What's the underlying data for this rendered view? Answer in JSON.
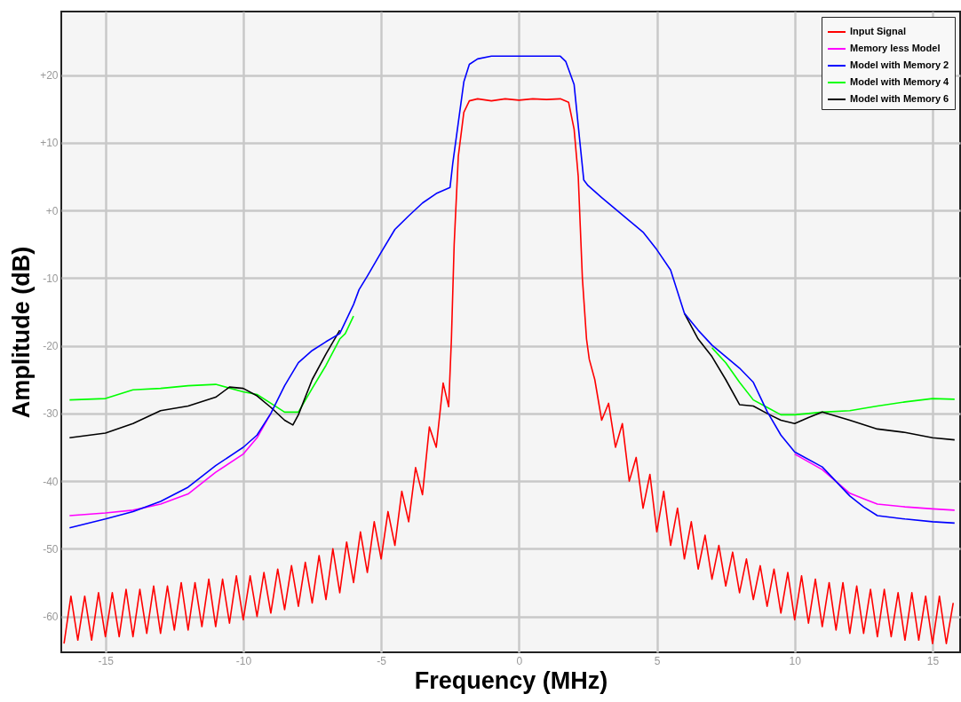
{
  "chart_data": {
    "type": "line",
    "xlabel": "Frequency (MHz)",
    "ylabel": "Amplitude (dB)",
    "xlim": [
      -16.6,
      16.0
    ],
    "ylim": [
      -65.3,
      29.4
    ],
    "xticks": [
      -15,
      -10,
      -5,
      0,
      5,
      10,
      15
    ],
    "yticks": [
      {
        "value": 20,
        "label": "+20"
      },
      {
        "value": 10,
        "label": "+10"
      },
      {
        "value": 0,
        "label": "+0"
      },
      -10,
      -20,
      -30,
      -40,
      -50,
      -60
    ],
    "grid": true,
    "legend": "top right",
    "line_style": "solid",
    "marker": "none",
    "series": [
      {
        "name": "Input Signal",
        "color": "#ff0000",
        "x": [
          -16.5,
          -16.25,
          -16,
          -15.75,
          -15.5,
          -15.25,
          -15,
          -14.75,
          -14.5,
          -14.25,
          -14,
          -13.75,
          -13.5,
          -13.25,
          -13,
          -12.75,
          -12.5,
          -12.25,
          -12,
          -11.75,
          -11.5,
          -11.25,
          -11,
          -10.75,
          -10.5,
          -10.25,
          -10,
          -9.75,
          -9.5,
          -9.25,
          -9,
          -8.75,
          -8.5,
          -8.25,
          -8,
          -7.75,
          -7.5,
          -7.25,
          -7,
          -6.75,
          -6.5,
          -6.25,
          -6,
          -5.75,
          -5.5,
          -5.25,
          -5,
          -4.75,
          -4.5,
          -4.25,
          -4,
          -3.75,
          -3.5,
          -3.25,
          -3,
          -2.75,
          -2.55,
          -2.45,
          -2.35,
          -2.2,
          -2.0,
          -1.8,
          -1.5,
          -1,
          -0.5,
          0,
          0.5,
          1,
          1.5,
          1.8,
          2.0,
          2.15,
          2.3,
          2.45,
          2.55,
          2.75,
          3,
          3.25,
          3.5,
          3.75,
          4,
          4.25,
          4.5,
          4.75,
          5,
          5.25,
          5.5,
          5.75,
          6,
          6.25,
          6.5,
          6.75,
          7,
          7.25,
          7.5,
          7.75,
          8,
          8.25,
          8.5,
          8.75,
          9,
          9.25,
          9.5,
          9.75,
          10,
          10.25,
          10.5,
          10.75,
          11,
          11.25,
          11.5,
          11.75,
          12,
          12.25,
          12.5,
          12.75,
          13,
          13.25,
          13.5,
          13.75,
          14,
          14.25,
          14.5,
          14.75,
          15,
          15.25,
          15.5,
          15.75
        ],
        "values": [
          -64,
          -57,
          -63.5,
          -57,
          -63.5,
          -56.5,
          -63,
          -56.5,
          -63,
          -56,
          -63,
          -56,
          -62.5,
          -55.5,
          -62.5,
          -55.5,
          -62,
          -55,
          -62,
          -55,
          -61.5,
          -54.5,
          -61.5,
          -54.5,
          -61,
          -54,
          -60.5,
          -54,
          -60,
          -53.5,
          -59.5,
          -53,
          -59,
          -52.5,
          -58.5,
          -52,
          -58,
          -51,
          -57.5,
          -50,
          -56.5,
          -49,
          -55,
          -47.5,
          -53.5,
          -46,
          -51.5,
          -44.5,
          -49.5,
          -41.5,
          -46,
          -38,
          -42,
          -32,
          -35,
          -25.5,
          -29,
          -19,
          -5,
          8,
          14.5,
          16.2,
          16.5,
          16.2,
          16.5,
          16.3,
          16.5,
          16.4,
          16.5,
          16,
          12,
          5,
          -10,
          -19,
          -22,
          -25,
          -31,
          -28.5,
          -35,
          -31.5,
          -40,
          -36.5,
          -44,
          -39,
          -47.5,
          -41.5,
          -49.5,
          -44,
          -51.5,
          -46,
          -53,
          -48,
          -54.5,
          -49.5,
          -55.5,
          -50.5,
          -56.5,
          -51.5,
          -57.5,
          -52.5,
          -58.5,
          -53,
          -59.5,
          -53.5,
          -60.5,
          -54,
          -61,
          -54.5,
          -61.5,
          -55,
          -62,
          -55,
          -62.5,
          -55.5,
          -62.5,
          -56,
          -63,
          -56,
          -63,
          -56.5,
          -63.5,
          -56.5,
          -63.5,
          -57,
          -64,
          -57,
          -64,
          -58
        ]
      },
      {
        "name": "Memory less Model",
        "color": "#ff00ff",
        "x": [
          -16.3,
          -15,
          -14,
          -13,
          -12,
          -11,
          -10,
          -9.5,
          -9,
          -8.5,
          -8,
          -7.5,
          -7,
          -6.5,
          -6,
          -5.8,
          -5.5,
          -5,
          -4.5,
          -4,
          -3.5,
          -3,
          -2.5,
          -2.4,
          -2.2,
          -2.0,
          -1.8,
          -1.5,
          -1,
          0,
          1,
          1.5,
          1.7,
          2,
          2.2,
          2.35,
          2.5,
          3,
          3.5,
          4,
          4.5,
          5,
          5.5,
          6,
          6.5,
          7,
          7.5,
          8,
          8.5,
          9,
          9.5,
          10,
          11,
          12,
          12.5,
          13,
          14,
          15,
          15.8
        ],
        "values": [
          -45.1,
          -44.7,
          -44.3,
          -43.4,
          -41.9,
          -38.7,
          -36,
          -33.6,
          -30,
          null,
          null,
          null,
          null,
          null,
          null,
          null,
          null,
          null,
          null,
          null,
          null,
          null,
          null,
          null,
          null,
          null,
          null,
          null,
          null,
          null,
          null,
          null,
          null,
          null,
          null,
          null,
          null,
          null,
          null,
          null,
          null,
          null,
          null,
          null,
          null,
          null,
          null,
          null,
          null,
          null,
          null,
          -36,
          -38.3,
          -41.8,
          -42.6,
          -43.4,
          -43.8,
          -44.1,
          -44.3
        ]
      },
      {
        "name": "Model with Memory 2",
        "color": "#0000ff",
        "x": [
          -16.3,
          -15,
          -14,
          -13,
          -12,
          -11,
          -10,
          -9.5,
          -9,
          -8.5,
          -8,
          -7.5,
          -7,
          -6.5,
          -6,
          -5.8,
          -5.5,
          -5,
          -4.5,
          -4,
          -3.5,
          -3,
          -2.5,
          -2.4,
          -2.2,
          -2.0,
          -1.8,
          -1.5,
          -1,
          0,
          1,
          1.5,
          1.7,
          2,
          2.2,
          2.35,
          2.5,
          3,
          3.5,
          4,
          4.5,
          5,
          5.5,
          6,
          6.5,
          7,
          7.5,
          8,
          8.5,
          9,
          9.5,
          10,
          11,
          12,
          12.5,
          13,
          14,
          15,
          15.8
        ],
        "values": [
          -46.9,
          -45.6,
          -44.5,
          -43,
          -40.9,
          -37.7,
          -35,
          -33.2,
          -30,
          -25.9,
          -22.5,
          -20.7,
          -19.4,
          -18.2,
          -13.9,
          -11.7,
          -9.7,
          -6.2,
          -2.8,
          -0.8,
          1.1,
          2.5,
          3.4,
          7,
          13,
          19,
          21.6,
          22.4,
          22.8,
          22.8,
          22.8,
          22.8,
          22,
          18.6,
          10.5,
          4.5,
          3.7,
          1.9,
          0.2,
          -1.5,
          -3.2,
          -5.8,
          -8.8,
          -15.2,
          -17.7,
          -19.9,
          -21.6,
          -23.3,
          -25.4,
          -29.7,
          -33.2,
          -35.7,
          -37.9,
          -42.2,
          -43.8,
          -45.1,
          -45.6,
          -46,
          -46.2
        ]
      },
      {
        "name": "Model with Memory 4",
        "color": "#00ff00",
        "x": [
          -16.3,
          -15,
          -14,
          -13,
          -12,
          -11,
          -10,
          -9.5,
          -9,
          -8.5,
          -8,
          -7.5,
          -7,
          -6.5,
          -6.3,
          -6,
          -5.8,
          -5.5,
          -5,
          -4.5,
          -4,
          -3.5,
          -3,
          -2.5,
          -2.4,
          -2.2,
          -2.0,
          -1.8,
          -1.5,
          -1,
          0,
          1,
          1.5,
          1.7,
          2,
          2.2,
          2.35,
          2.5,
          3,
          3.5,
          4,
          4.5,
          5,
          5.5,
          6,
          6.5,
          7,
          7.5,
          8,
          8.5,
          9,
          9.5,
          10,
          10.5,
          11,
          12,
          13,
          14,
          15,
          15.8
        ],
        "values": [
          -28,
          -27.8,
          -26.5,
          -26.3,
          -25.9,
          -25.7,
          -26.8,
          -27.2,
          -28.5,
          -29.8,
          -29.8,
          -26.3,
          -22.9,
          -19,
          -18.2,
          -15.6,
          null,
          null,
          null,
          null,
          null,
          null,
          null,
          null,
          null,
          null,
          null,
          null,
          null,
          null,
          null,
          null,
          null,
          null,
          null,
          null,
          null,
          null,
          null,
          null,
          null,
          null,
          null,
          null,
          null,
          null,
          -20.3,
          -22.5,
          -25.4,
          -28,
          -29.1,
          -30.2,
          -30.2,
          -30,
          -29.8,
          -29.6,
          -28.9,
          -28.3,
          -27.8,
          -27.9
        ]
      },
      {
        "name": "Model with Memory 6",
        "color": "#000000",
        "x": [
          -16.3,
          -15,
          -14,
          -13,
          -12,
          -11,
          -10.5,
          -10,
          -9.5,
          -9,
          -8.5,
          -8.2,
          -8,
          -7.5,
          -7,
          -6.5,
          -6,
          -5.8,
          -5.5,
          -5,
          -4.5,
          -4,
          -3.5,
          -3,
          -2.5,
          -2.4,
          -2.2,
          -2.0,
          -1.8,
          -1.5,
          -1,
          0,
          1,
          1.5,
          1.7,
          2,
          2.2,
          2.35,
          2.5,
          3,
          3.5,
          4,
          4.5,
          5,
          5.5,
          6,
          6.5,
          7,
          7.5,
          8,
          8.5,
          9,
          9.5,
          10,
          10.5,
          11,
          12,
          13,
          14,
          15,
          15.8
        ],
        "values": [
          -33.6,
          -32.9,
          -31.5,
          -29.6,
          -28.9,
          -27.6,
          -26.1,
          -26.3,
          -27.4,
          -29.1,
          -31,
          -31.7,
          -30.2,
          -25,
          -21.2,
          -17.7,
          null,
          null,
          null,
          null,
          null,
          null,
          null,
          null,
          null,
          null,
          null,
          null,
          null,
          null,
          null,
          null,
          null,
          null,
          null,
          null,
          null,
          null,
          null,
          null,
          null,
          null,
          null,
          null,
          null,
          -15.2,
          -19,
          -21.6,
          -25,
          -28.7,
          -28.9,
          -30,
          -31,
          -31.5,
          -30.6,
          -29.8,
          -31,
          -32.3,
          -32.8,
          -33.6,
          -33.9
        ]
      }
    ]
  }
}
